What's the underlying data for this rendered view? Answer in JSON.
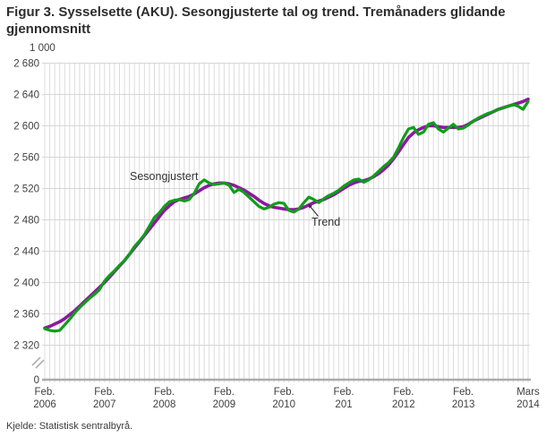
{
  "page": {
    "title": "Figur 3. Sysselsette (AKU). Sesongjusterte tal og trend. Tremånaders glidande gjennomsnitt",
    "source": "Kjelde: Statistisk sentralbyrå."
  },
  "chart_data": {
    "type": "line",
    "title": "Figur 3. Sysselsette (AKU). Sesongjusterte tal og trend. Tremånaders glidande gjennomsnitt",
    "unit_label": "1 000",
    "grid": "both",
    "axis_break": true,
    "zero_label": "0",
    "ylim_display": [
      2320,
      2680
    ],
    "y_ticks": [
      {
        "v": 2680,
        "label": "2 680"
      },
      {
        "v": 2640,
        "label": "2 640"
      },
      {
        "v": 2600,
        "label": "2 600"
      },
      {
        "v": 2560,
        "label": "2 560"
      },
      {
        "v": 2520,
        "label": "2 520"
      },
      {
        "v": 2480,
        "label": "2 480"
      },
      {
        "v": 2440,
        "label": "2 440"
      },
      {
        "v": 2400,
        "label": "2 400"
      },
      {
        "v": 2360,
        "label": "2 360"
      },
      {
        "v": 2320,
        "label": "2 320"
      }
    ],
    "months_span": 97,
    "x_start": "Feb. 2006",
    "x_end": "Mars 2014",
    "x_ticks": [
      {
        "line1": "Feb.",
        "line2": "2006",
        "month_index": 0
      },
      {
        "line1": "Feb.",
        "line2": "2007",
        "month_index": 12
      },
      {
        "line1": "Feb.",
        "line2": "2008",
        "month_index": 24
      },
      {
        "line1": "Feb.",
        "line2": "2009",
        "month_index": 36
      },
      {
        "line1": "Feb.",
        "line2": "2010",
        "month_index": 48
      },
      {
        "line1": "Feb.",
        "line2": "201",
        "month_index": 60
      },
      {
        "line1": "Feb.",
        "line2": "2012",
        "month_index": 72
      },
      {
        "line1": "Feb.",
        "line2": "2013",
        "month_index": 84
      },
      {
        "line1": "Mars",
        "line2": "2014",
        "month_index": 97
      }
    ],
    "series": [
      {
        "name": "Trend",
        "color": "#8b1a9e",
        "values": [
          2342,
          2344,
          2347,
          2350,
          2354,
          2359,
          2364,
          2370,
          2376,
          2382,
          2388,
          2394,
          2400,
          2407,
          2414,
          2421,
          2428,
          2436,
          2444,
          2452,
          2460,
          2468,
          2476,
          2484,
          2492,
          2498,
          2503,
          2506,
          2508,
          2510,
          2513,
          2517,
          2521,
          2524,
          2526,
          2527,
          2527,
          2526,
          2524,
          2521,
          2518,
          2514,
          2510,
          2505,
          2501,
          2498,
          2496,
          2495,
          2494,
          2493,
          2493,
          2494,
          2496,
          2499,
          2502,
          2504,
          2506,
          2509,
          2512,
          2516,
          2520,
          2524,
          2527,
          2529,
          2530,
          2532,
          2535,
          2539,
          2544,
          2550,
          2558,
          2567,
          2576,
          2585,
          2591,
          2595,
          2598,
          2600,
          2600,
          2599,
          2598,
          2598,
          2598,
          2598,
          2599,
          2602,
          2606,
          2609,
          2612,
          2615,
          2618,
          2621,
          2623,
          2625,
          2627,
          2629,
          2631,
          2634
        ]
      },
      {
        "name": "Sesongjustert",
        "color": "#0f9d1a",
        "values": [
          2341,
          2339,
          2338,
          2339,
          2346,
          2353,
          2361,
          2368,
          2374,
          2380,
          2385,
          2391,
          2402,
          2409,
          2415,
          2422,
          2428,
          2436,
          2446,
          2453,
          2461,
          2472,
          2483,
          2489,
          2497,
          2503,
          2505,
          2506,
          2504,
          2506,
          2514,
          2526,
          2531,
          2527,
          2525,
          2526,
          2527,
          2524,
          2515,
          2519,
          2515,
          2509,
          2503,
          2497,
          2494,
          2496,
          2500,
          2502,
          2501,
          2492,
          2490,
          2494,
          2502,
          2509,
          2506,
          2502,
          2507,
          2511,
          2514,
          2518,
          2523,
          2527,
          2531,
          2532,
          2528,
          2531,
          2536,
          2542,
          2548,
          2553,
          2560,
          2572,
          2585,
          2596,
          2598,
          2589,
          2592,
          2602,
          2604,
          2596,
          2592,
          2597,
          2602,
          2596,
          2597,
          2601,
          2606,
          2610,
          2613,
          2616,
          2618,
          2621,
          2623,
          2625,
          2627,
          2625,
          2621,
          2631
        ]
      }
    ],
    "annotations": [
      {
        "text": "Sesongjustert",
        "points_to": "Sesongjustert",
        "arrow": false
      },
      {
        "text": "Trend",
        "points_to": "Trend",
        "arrow": true
      }
    ],
    "legend_position": "inline-annotations"
  }
}
